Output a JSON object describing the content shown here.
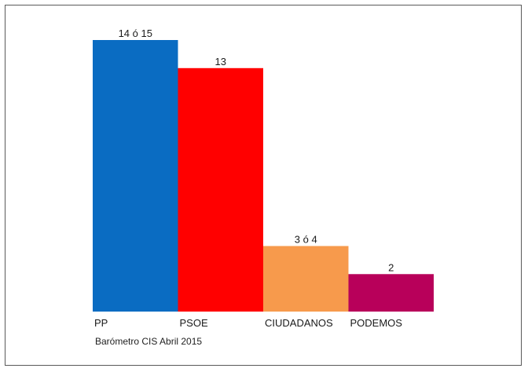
{
  "chart_data": {
    "type": "bar",
    "categories": [
      "PP",
      "PSOE",
      "CIUDADANOS",
      "PODEMOS"
    ],
    "values": [
      14.5,
      13,
      3.5,
      2
    ],
    "data_labels": [
      "14 ó 15",
      "13",
      "3 ó 4",
      "2"
    ],
    "colors": [
      "#0a6cc2",
      "#ff0000",
      "#f79a4c",
      "#b8005a"
    ],
    "ylim": [
      0,
      14.5
    ],
    "grid": false,
    "legend": "none",
    "source_note": "Barómetro CIS Abril 2015"
  }
}
